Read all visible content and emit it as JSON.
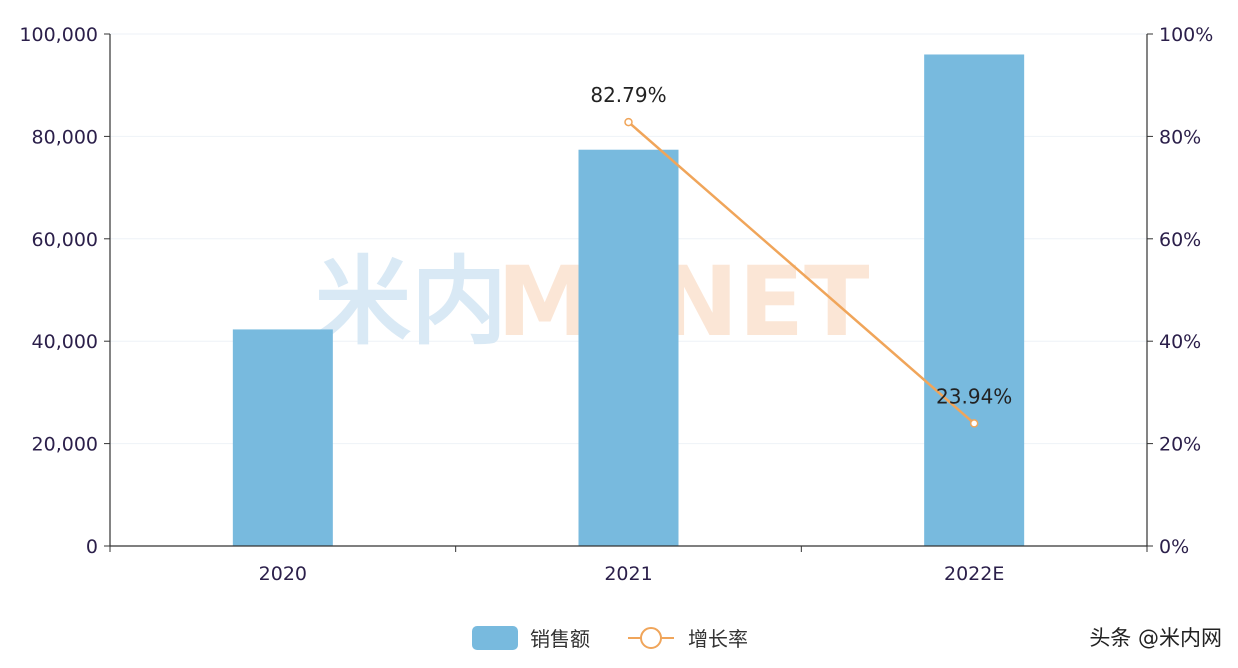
{
  "chart_data": {
    "type": "bar",
    "categories": [
      "2020",
      "2021",
      "2022E"
    ],
    "series": [
      {
        "name": "销售额",
        "kind": "bar",
        "axis": "left",
        "values": [
          42300,
          77400,
          96000
        ],
        "color": "#78bade"
      },
      {
        "name": "增长率",
        "kind": "line",
        "axis": "right",
        "values": [
          null,
          82.79,
          23.94
        ],
        "color": "#f0a55a",
        "labels": [
          "",
          "82.79%",
          "23.94%"
        ]
      }
    ],
    "y_left": {
      "min": 0,
      "max": 100000,
      "ticks": [
        "0",
        "20,000",
        "40,000",
        "60,000",
        "80,000",
        "100,000"
      ]
    },
    "y_right": {
      "min": 0,
      "max": 100,
      "ticks": [
        "0%",
        "20%",
        "40%",
        "60%",
        "80%",
        "100%"
      ]
    },
    "grid": true,
    "legend": {
      "position": "bottom-center",
      "items": [
        "销售额",
        "增长率"
      ]
    }
  },
  "watermark": {
    "cn": "米内",
    "en": "MENET",
    "source": "头条 @米内网"
  }
}
